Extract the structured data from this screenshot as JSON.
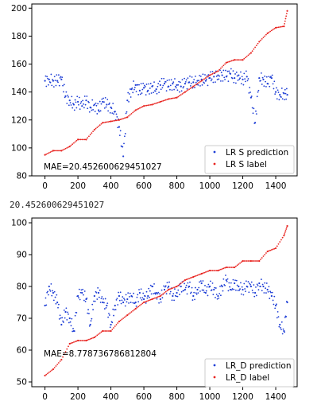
{
  "output_text": "20.452600629451027",
  "chart_data": [
    {
      "type": "scatter",
      "xlim": [
        -80,
        1530
      ],
      "ylim": [
        80,
        203
      ],
      "xticks": [
        0,
        200,
        400,
        600,
        800,
        1000,
        1200,
        1400
      ],
      "yticks": [
        80,
        100,
        120,
        140,
        160,
        180,
        200
      ],
      "annotation": "MAE=20.452600629451027",
      "legend_position": "lower right",
      "series": [
        {
          "name": "LR S prediction",
          "color": "#1f3fd6",
          "x": [
            0,
            25,
            50,
            75,
            100,
            125,
            150,
            175,
            200,
            225,
            250,
            275,
            300,
            325,
            350,
            375,
            400,
            425,
            450,
            475,
            500,
            525,
            550,
            575,
            600,
            625,
            650,
            675,
            700,
            725,
            750,
            775,
            800,
            825,
            850,
            875,
            900,
            925,
            950,
            975,
            1000,
            1025,
            1050,
            1075,
            1100,
            1125,
            1150,
            1175,
            1200,
            1225,
            1250,
            1275,
            1300,
            1325,
            1350,
            1375,
            1400,
            1425,
            1450,
            1470
          ],
          "y": [
            148,
            149,
            148,
            148,
            149,
            137,
            134,
            131,
            133,
            130,
            134,
            129,
            131,
            127,
            133,
            131,
            129,
            126,
            115,
            94,
            134,
            142,
            145,
            141,
            143,
            141,
            144,
            142,
            145,
            146,
            144,
            146,
            145,
            144,
            146,
            147,
            147,
            148,
            149,
            148,
            150,
            151,
            152,
            152,
            151,
            153,
            150,
            152,
            149,
            151,
            136,
            118,
            150,
            149,
            146,
            150,
            140,
            138,
            139,
            138
          ]
        },
        {
          "name": "LR S label",
          "color": "#e8231f",
          "x": [
            0,
            50,
            100,
            150,
            200,
            250,
            300,
            350,
            400,
            450,
            500,
            550,
            600,
            650,
            700,
            750,
            800,
            850,
            900,
            950,
            1000,
            1050,
            1100,
            1150,
            1200,
            1250,
            1300,
            1350,
            1400,
            1450,
            1470
          ],
          "y": [
            95,
            98,
            98,
            101,
            106,
            106,
            113,
            118,
            119,
            120,
            122,
            127,
            130,
            131,
            133,
            135,
            136,
            140,
            144,
            148,
            152,
            155,
            161,
            163,
            163,
            168,
            176,
            182,
            186,
            187,
            198
          ]
        }
      ]
    },
    {
      "type": "scatter",
      "xlim": [
        -80,
        1530
      ],
      "ylim": [
        48.5,
        101.5
      ],
      "xticks": [
        0,
        200,
        400,
        600,
        800,
        1000,
        1200,
        1400
      ],
      "yticks": [
        50,
        60,
        70,
        80,
        90,
        100
      ],
      "annotation": "MAE=8.778736786812804",
      "legend_position": "lower right",
      "series": [
        {
          "name": "LR_D prediction",
          "color": "#1f3fd6",
          "x": [
            0,
            25,
            50,
            75,
            100,
            125,
            150,
            175,
            200,
            225,
            250,
            275,
            300,
            325,
            350,
            375,
            400,
            425,
            450,
            475,
            500,
            525,
            550,
            575,
            600,
            625,
            650,
            675,
            700,
            725,
            750,
            775,
            800,
            825,
            850,
            875,
            900,
            925,
            950,
            975,
            1000,
            1025,
            1050,
            1075,
            1100,
            1125,
            1150,
            1175,
            1200,
            1225,
            1250,
            1275,
            1300,
            1325,
            1350,
            1375,
            1400,
            1425,
            1450,
            1470
          ],
          "y": [
            74,
            80,
            78,
            75,
            68,
            72,
            70,
            66,
            77,
            78,
            76,
            68,
            77,
            78,
            75,
            74,
            68,
            74,
            77,
            75,
            76,
            77,
            75,
            78,
            76,
            77,
            80,
            78,
            76,
            79,
            80,
            77,
            78,
            80,
            79,
            80,
            77,
            79,
            81,
            78,
            80,
            79,
            77,
            80,
            82,
            79,
            81,
            80,
            79,
            80,
            80,
            78,
            81,
            80,
            79,
            77,
            74,
            68,
            66,
            75
          ]
        },
        {
          "name": "LR_D label",
          "color": "#e8231f",
          "x": [
            0,
            50,
            100,
            150,
            200,
            250,
            300,
            350,
            400,
            450,
            500,
            550,
            600,
            650,
            700,
            750,
            800,
            850,
            900,
            950,
            1000,
            1050,
            1100,
            1150,
            1200,
            1250,
            1300,
            1350,
            1400,
            1450,
            1470
          ],
          "y": [
            52,
            54,
            57,
            62,
            63,
            63,
            64,
            66,
            66,
            69,
            71,
            73,
            75,
            76,
            77,
            79,
            80,
            82,
            83,
            84,
            85,
            85,
            86,
            86,
            88,
            88,
            88,
            91,
            92,
            96,
            99
          ]
        }
      ]
    }
  ]
}
